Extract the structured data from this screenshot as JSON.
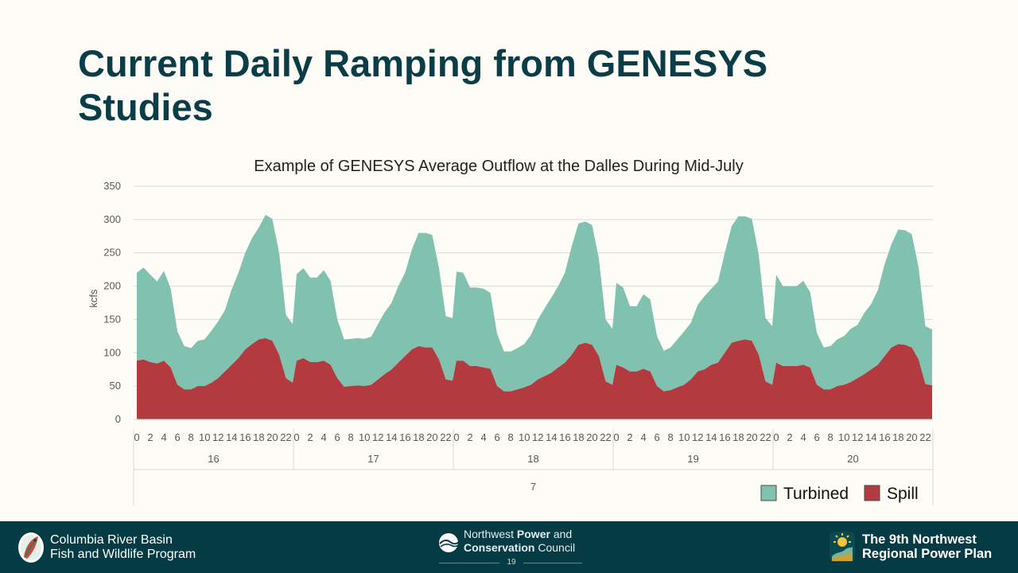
{
  "slide": {
    "title": "Current Daily Ramping from GENESYS Studies"
  },
  "chart_data": {
    "type": "area",
    "stacked": true,
    "title": "Example of GENESYS Average Outflow at the Dalles During Mid-July",
    "ylabel": "kcfs",
    "xlabel": "",
    "ylim": [
      0,
      350
    ],
    "yticks": [
      0,
      50,
      100,
      150,
      200,
      250,
      300,
      350
    ],
    "grid": true,
    "legend_position": "bottom-right",
    "x_hours_per_day": [
      0,
      1,
      2,
      3,
      4,
      5,
      6,
      7,
      8,
      9,
      10,
      11,
      12,
      13,
      14,
      15,
      16,
      17,
      18,
      19,
      20,
      21,
      22,
      23
    ],
    "x_hour_labels": [
      "0",
      "2",
      "4",
      "6",
      "8",
      "10",
      "12",
      "14",
      "16",
      "18",
      "20",
      "22"
    ],
    "days": [
      "16",
      "17",
      "18",
      "19",
      "20"
    ],
    "month": "7",
    "series": [
      {
        "name": "Spill",
        "color": "#b33a3f",
        "values": [
          88,
          90,
          86,
          84,
          88,
          78,
          52,
          45,
          45,
          50,
          50,
          55,
          62,
          72,
          82,
          92,
          105,
          113,
          120,
          122,
          118,
          97,
          62,
          55,
          88,
          92,
          86,
          86,
          88,
          82,
          62,
          49,
          50,
          51,
          50,
          52,
          60,
          68,
          75,
          85,
          95,
          105,
          110,
          108,
          108,
          90,
          60,
          58,
          88,
          88,
          80,
          80,
          78,
          76,
          50,
          42,
          42,
          45,
          48,
          52,
          60,
          65,
          70,
          78,
          85,
          97,
          112,
          115,
          112,
          95,
          57,
          52,
          82,
          78,
          72,
          72,
          76,
          72,
          50,
          42,
          44,
          48,
          52,
          60,
          72,
          75,
          82,
          85,
          100,
          115,
          118,
          120,
          118,
          97,
          57,
          52,
          85,
          80,
          80,
          80,
          82,
          78,
          52,
          45,
          45,
          50,
          52,
          56,
          62,
          68,
          75,
          82,
          95,
          108,
          113,
          112,
          108,
          90,
          53,
          51
        ]
      },
      {
        "name": "Turbined",
        "color": "#80c1b0",
        "values": [
          132,
          138,
          131,
          123,
          135,
          118,
          80,
          65,
          62,
          68,
          70,
          78,
          85,
          92,
          113,
          128,
          145,
          159,
          168,
          185,
          183,
          153,
          95,
          88,
          130,
          135,
          127,
          127,
          136,
          126,
          88,
          71,
          71,
          71,
          71,
          72,
          83,
          93,
          100,
          115,
          125,
          150,
          170,
          172,
          169,
          137,
          95,
          94,
          134,
          132,
          118,
          118,
          118,
          114,
          78,
          60,
          60,
          62,
          65,
          75,
          90,
          102,
          113,
          122,
          135,
          163,
          182,
          182,
          180,
          146,
          93,
          84,
          123,
          120,
          98,
          98,
          112,
          108,
          75,
          61,
          64,
          72,
          80,
          85,
          100,
          110,
          114,
          122,
          150,
          175,
          187,
          185,
          183,
          150,
          95,
          88,
          132,
          120,
          120,
          120,
          126,
          113,
          78,
          63,
          65,
          70,
          73,
          80,
          80,
          92,
          98,
          112,
          138,
          155,
          172,
          172,
          170,
          138,
          87,
          84
        ]
      }
    ]
  },
  "footer": {
    "left_logo_icon": "salmon-fish-icon",
    "left_line1": "Columbia River Basin",
    "left_line2": "Fish and Wildlife Program",
    "center_logo_icon": "nwpcc-wave-icon",
    "center_line1_a": "Northwest ",
    "center_line1_b": "Power",
    "center_line1_c": " and",
    "center_line2_a": "Conservation",
    "center_line2_b": " Council",
    "page_number": "19",
    "right_logo_icon": "power-plan-sun-icon",
    "right_line1": "The 9th Northwest",
    "right_line2": "Regional Power Plan"
  }
}
